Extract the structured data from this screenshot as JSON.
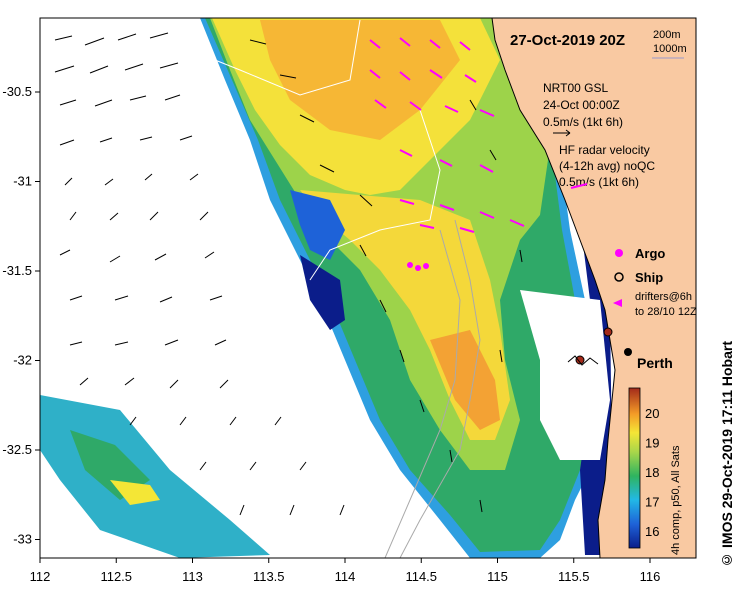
{
  "title_time": "27-Oct-2019 20Z",
  "isobaths": {
    "line1": "200m",
    "line2": "1000m"
  },
  "gsl": {
    "line1": "NRT00 GSL",
    "line2": "24-Oct 00:00Z",
    "scale": "0.5m/s (1kt 6h)"
  },
  "hf": {
    "line1": "HF radar velocity",
    "line2": "(4-12h avg) noQC",
    "scale": "0.5m/s (1kt 6h)"
  },
  "legend": {
    "argo": "Argo",
    "ship": "Ship",
    "drifters1": "drifters@6h",
    "drifters2": "to 28/10 12Z"
  },
  "city": "Perth",
  "colorbar": {
    "ticks": [
      "16",
      "17",
      "18",
      "19",
      "20"
    ],
    "label": "4h comp, p50, All Sats"
  },
  "credit": "© IMOS 29-Oct-2019 17:11 Hobart",
  "axes": {
    "lon_ticks": [
      "112",
      "112.5",
      "113",
      "113.5",
      "114",
      "114.5",
      "115",
      "115.5",
      "116"
    ],
    "lat_ticks": [
      "-30.5",
      "-31",
      "-31.5",
      "-32",
      "-32.5",
      "-33"
    ]
  },
  "colors": {
    "land": "#f9c9a2",
    "argo": "#ff00ff",
    "hf_arrows": "#ff00ff",
    "perth": "#000000"
  }
}
